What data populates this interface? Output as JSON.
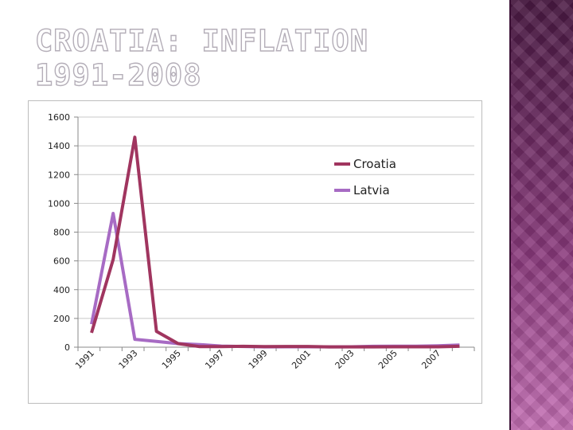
{
  "slide": {
    "title": "CROATIA: INFLATION\n1991-2008"
  },
  "colors": {
    "croatia": "#a0355f",
    "latvia": "#a76bc4",
    "gridline": "#c8c8c8",
    "side_panel": "#7a2f6e"
  },
  "chart_data": {
    "type": "line",
    "title": "",
    "xlabel": "",
    "ylabel": "",
    "x": [
      1991,
      1992,
      1993,
      1994,
      1995,
      1996,
      1997,
      1998,
      1999,
      2000,
      2001,
      2002,
      2003,
      2004,
      2005,
      2006,
      2007,
      2008
    ],
    "x_tick_labels": [
      "1991",
      "1993",
      "1995",
      "1997",
      "1999",
      "2001",
      "2003",
      "2005",
      "2007"
    ],
    "ylim": [
      0,
      1600
    ],
    "y_ticks": [
      0,
      200,
      400,
      600,
      800,
      1000,
      1200,
      1400,
      1600
    ],
    "grid": true,
    "legend_position": "upper-right",
    "series": [
      {
        "name": "Croatia",
        "color": "#a0355f",
        "values": [
          100,
          610,
          1460,
          110,
          25,
          4,
          4,
          6,
          4,
          5,
          5,
          2,
          2,
          2,
          3,
          3,
          3,
          6
        ]
      },
      {
        "name": "Latvia",
        "color": "#a76bc4",
        "values": [
          160,
          930,
          55,
          40,
          25,
          18,
          8,
          5,
          2,
          3,
          3,
          2,
          3,
          6,
          7,
          7,
          10,
          15
        ]
      }
    ]
  }
}
